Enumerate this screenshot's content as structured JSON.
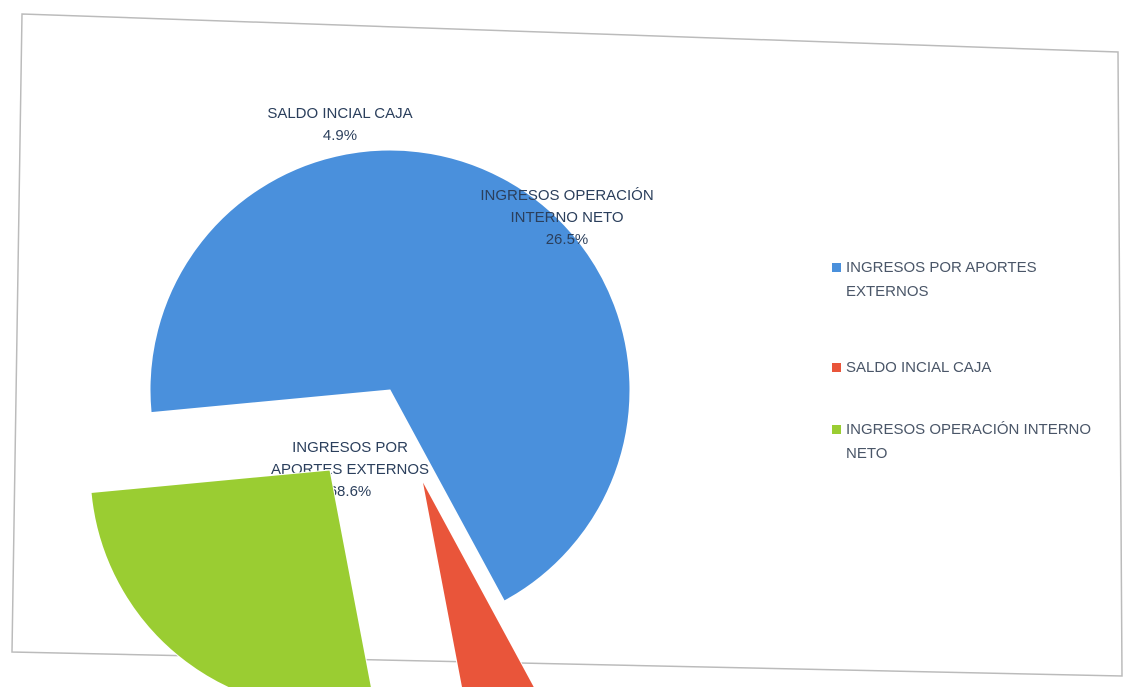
{
  "chart_data": {
    "type": "pie",
    "categories": [
      "INGRESOS POR APORTES EXTERNOS",
      "SALDO INCIAL CAJA",
      "INGRESOS OPERACIÓN INTERNO NETO"
    ],
    "values": [
      68.6,
      4.9,
      26.5
    ],
    "value_labels": [
      "68.6%",
      "4.9%",
      "26.5%"
    ],
    "colors": [
      "#4a90dc",
      "#e9553a",
      "#9acd32"
    ],
    "legend": "right"
  }
}
